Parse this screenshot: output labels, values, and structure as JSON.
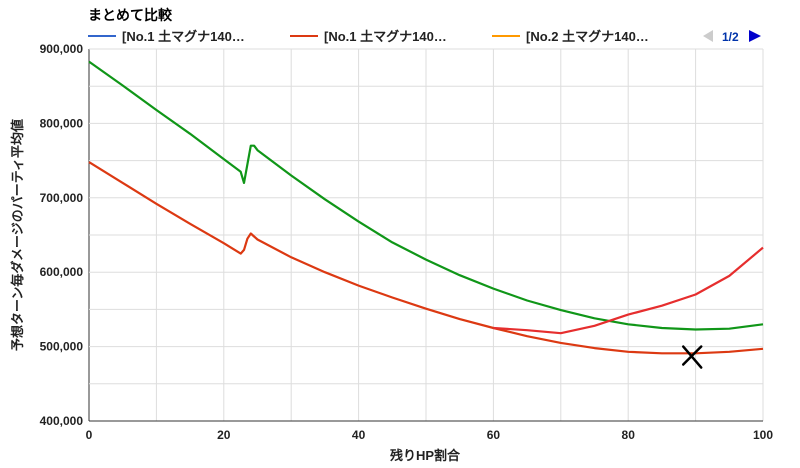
{
  "chart_data": {
    "type": "line",
    "title": "まとめて比較",
    "xlabel": "残りHP割合",
    "ylabel": "予想ターン毎ダメージのパーティ平均値",
    "xlim": [
      0,
      100
    ],
    "ylim": [
      400000,
      900000
    ],
    "x_ticks": [
      "0",
      "20",
      "40",
      "60",
      "80",
      "100"
    ],
    "y_ticks": [
      "400,000",
      "500,000",
      "600,000",
      "700,000",
      "800,000",
      "900,000"
    ],
    "grid": true,
    "legend_position": "top",
    "legend": [
      {
        "label": "[No.1 土マグナ140…",
        "color": "#3366cc"
      },
      {
        "label": "[No.1 土マグナ140…",
        "color": "#dc3912"
      },
      {
        "label": "[No.2 土マグナ140…",
        "color": "#ff9900"
      }
    ],
    "legend_page": "1/2",
    "series": [
      {
        "color": "#dc3912",
        "x": [
          0,
          5,
          10,
          15,
          20,
          22.5,
          23,
          23.5,
          24,
          24.5,
          25,
          30,
          35,
          40,
          45,
          50,
          55,
          60,
          65,
          70,
          75,
          80,
          85,
          90,
          95,
          100
        ],
        "y": [
          748000,
          720000,
          692000,
          665000,
          639000,
          625000,
          630000,
          645000,
          652000,
          648000,
          644000,
          620000,
          600000,
          582000,
          566000,
          551000,
          537000,
          525000,
          514000,
          505000,
          498000,
          493000,
          491000,
          491000,
          493000,
          497000
        ]
      },
      {
        "color": "#109618",
        "x": [
          0,
          5,
          10,
          15,
          20,
          22.5,
          23,
          23.5,
          24,
          24.5,
          25,
          30,
          35,
          40,
          45,
          50,
          55,
          60,
          65,
          70,
          75,
          80,
          85,
          90,
          95,
          100
        ],
        "y": [
          883000,
          851000,
          818000,
          786000,
          752000,
          735000,
          720000,
          745000,
          770000,
          770000,
          764000,
          730000,
          698000,
          668000,
          640000,
          617000,
          596000,
          578000,
          562000,
          549000,
          538000,
          530000,
          525000,
          523000,
          524000,
          530000
        ]
      },
      {
        "color": "#e62e2e",
        "x": [
          60,
          65,
          70,
          75,
          80,
          85,
          90,
          95,
          100
        ],
        "y": [
          525000,
          522000,
          518000,
          528000,
          543000,
          555000,
          570000,
          595000,
          633000
        ]
      }
    ],
    "annotations": [
      {
        "type": "cross-marker",
        "x": 89.5,
        "y": 488000
      }
    ]
  }
}
